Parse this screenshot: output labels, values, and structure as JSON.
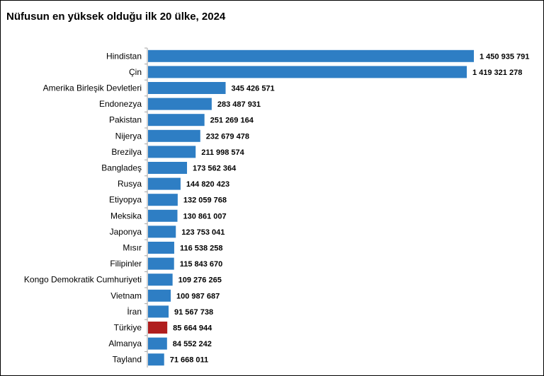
{
  "chart_data": {
    "type": "bar",
    "orientation": "horizontal",
    "title": "Nüfusun en yüksek olduğu ilk 20 ülke, 2024",
    "xlabel": "",
    "ylabel": "",
    "grid": false,
    "legend": "none",
    "categories": [
      "Hindistan",
      "Çin",
      "Amerika Birleşik Devletleri",
      "Endonezya",
      "Pakistan",
      "Nijerya",
      "Brezilya",
      "Bangladeş",
      "Rusya",
      "Etiyopya",
      "Meksika",
      "Japonya",
      "Mısır",
      "Filipinler",
      "Kongo Demokratik Cumhuriyeti",
      "Vietnam",
      "İran",
      "Türkiye",
      "Almanya",
      "Tayland"
    ],
    "values": [
      1450935791,
      1419321278,
      345426571,
      283487931,
      251269164,
      232679478,
      211998574,
      173562364,
      144820423,
      132059768,
      130861007,
      123753041,
      116538258,
      115843670,
      109276265,
      100987687,
      91567738,
      85664944,
      84552242,
      71668011
    ],
    "value_labels": [
      "1 450 935 791",
      "1 419 321 278",
      "345 426 571",
      "283 487 931",
      "251 269 164",
      "232 679 478",
      "211 998 574",
      "173 562 364",
      "144 820 423",
      "132 059 768",
      "130 861 007",
      "123 753 041",
      "116 538 258",
      "115 843 670",
      "109 276 265",
      "100 987 687",
      "91 567 738",
      "85 664 944",
      "84 552 242",
      "71 668 011"
    ],
    "highlight": "Türkiye",
    "colors": {
      "bar": "#2e7ec4",
      "highlight": "#b01e1e",
      "axis": "#a6a6a6"
    }
  }
}
